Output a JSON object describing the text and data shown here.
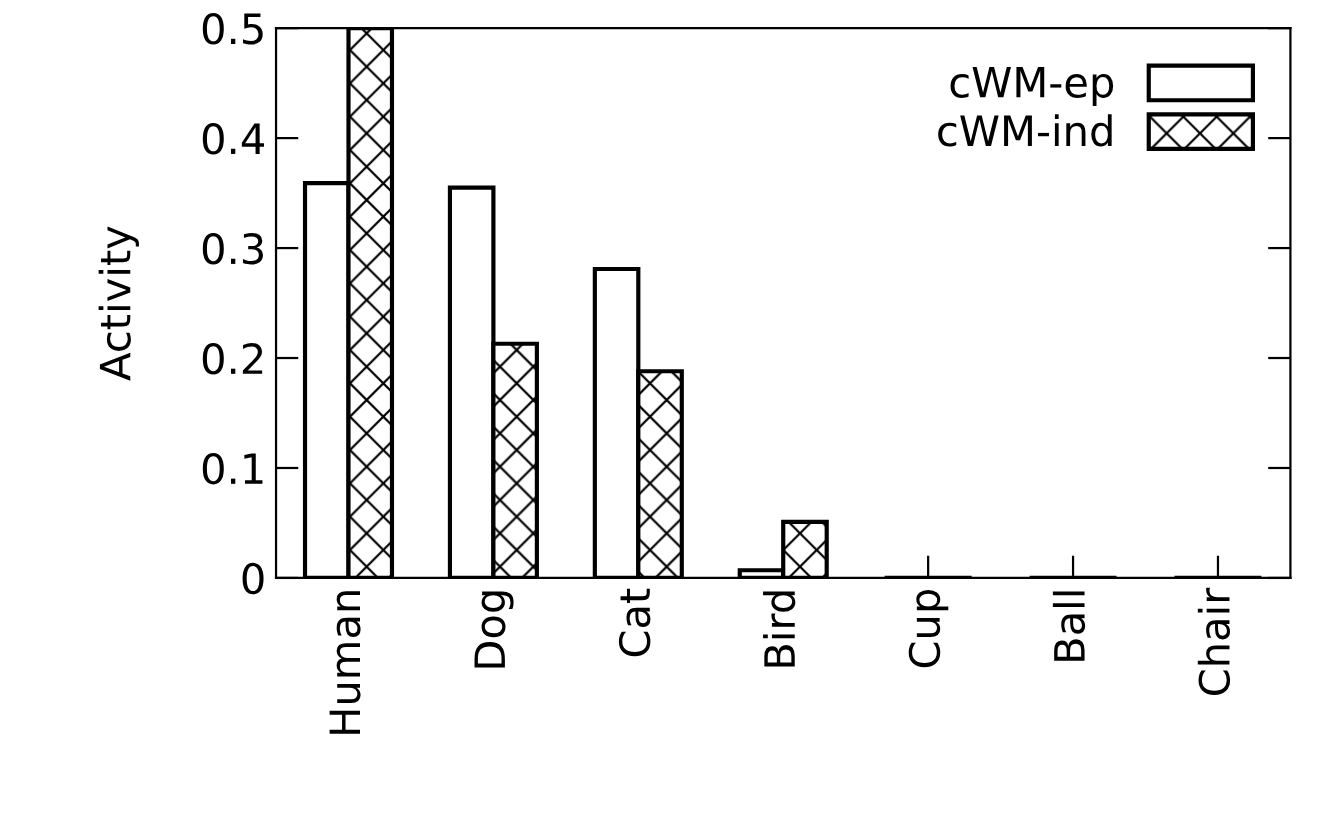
{
  "chart_data": {
    "type": "bar",
    "ylabel": "Activity",
    "categories": [
      "Human",
      "Dog",
      "Cat",
      "Bird",
      "Cup",
      "Ball",
      "Chair"
    ],
    "series": [
      {
        "name": "cWM-ep",
        "color": "#ffffff",
        "values": [
          0.359,
          0.355,
          0.281,
          0.007,
          0,
          0,
          0
        ]
      },
      {
        "name": "cWM-ind",
        "color": "#000000",
        "values": [
          0.5,
          0.213,
          0.188,
          0.051,
          0,
          0,
          0
        ]
      }
    ],
    "ylim": [
      0,
      0.5
    ],
    "yticks": [
      0,
      0.1,
      0.2,
      0.3,
      0.4,
      0.5
    ],
    "grid": false,
    "legend": "top right"
  }
}
